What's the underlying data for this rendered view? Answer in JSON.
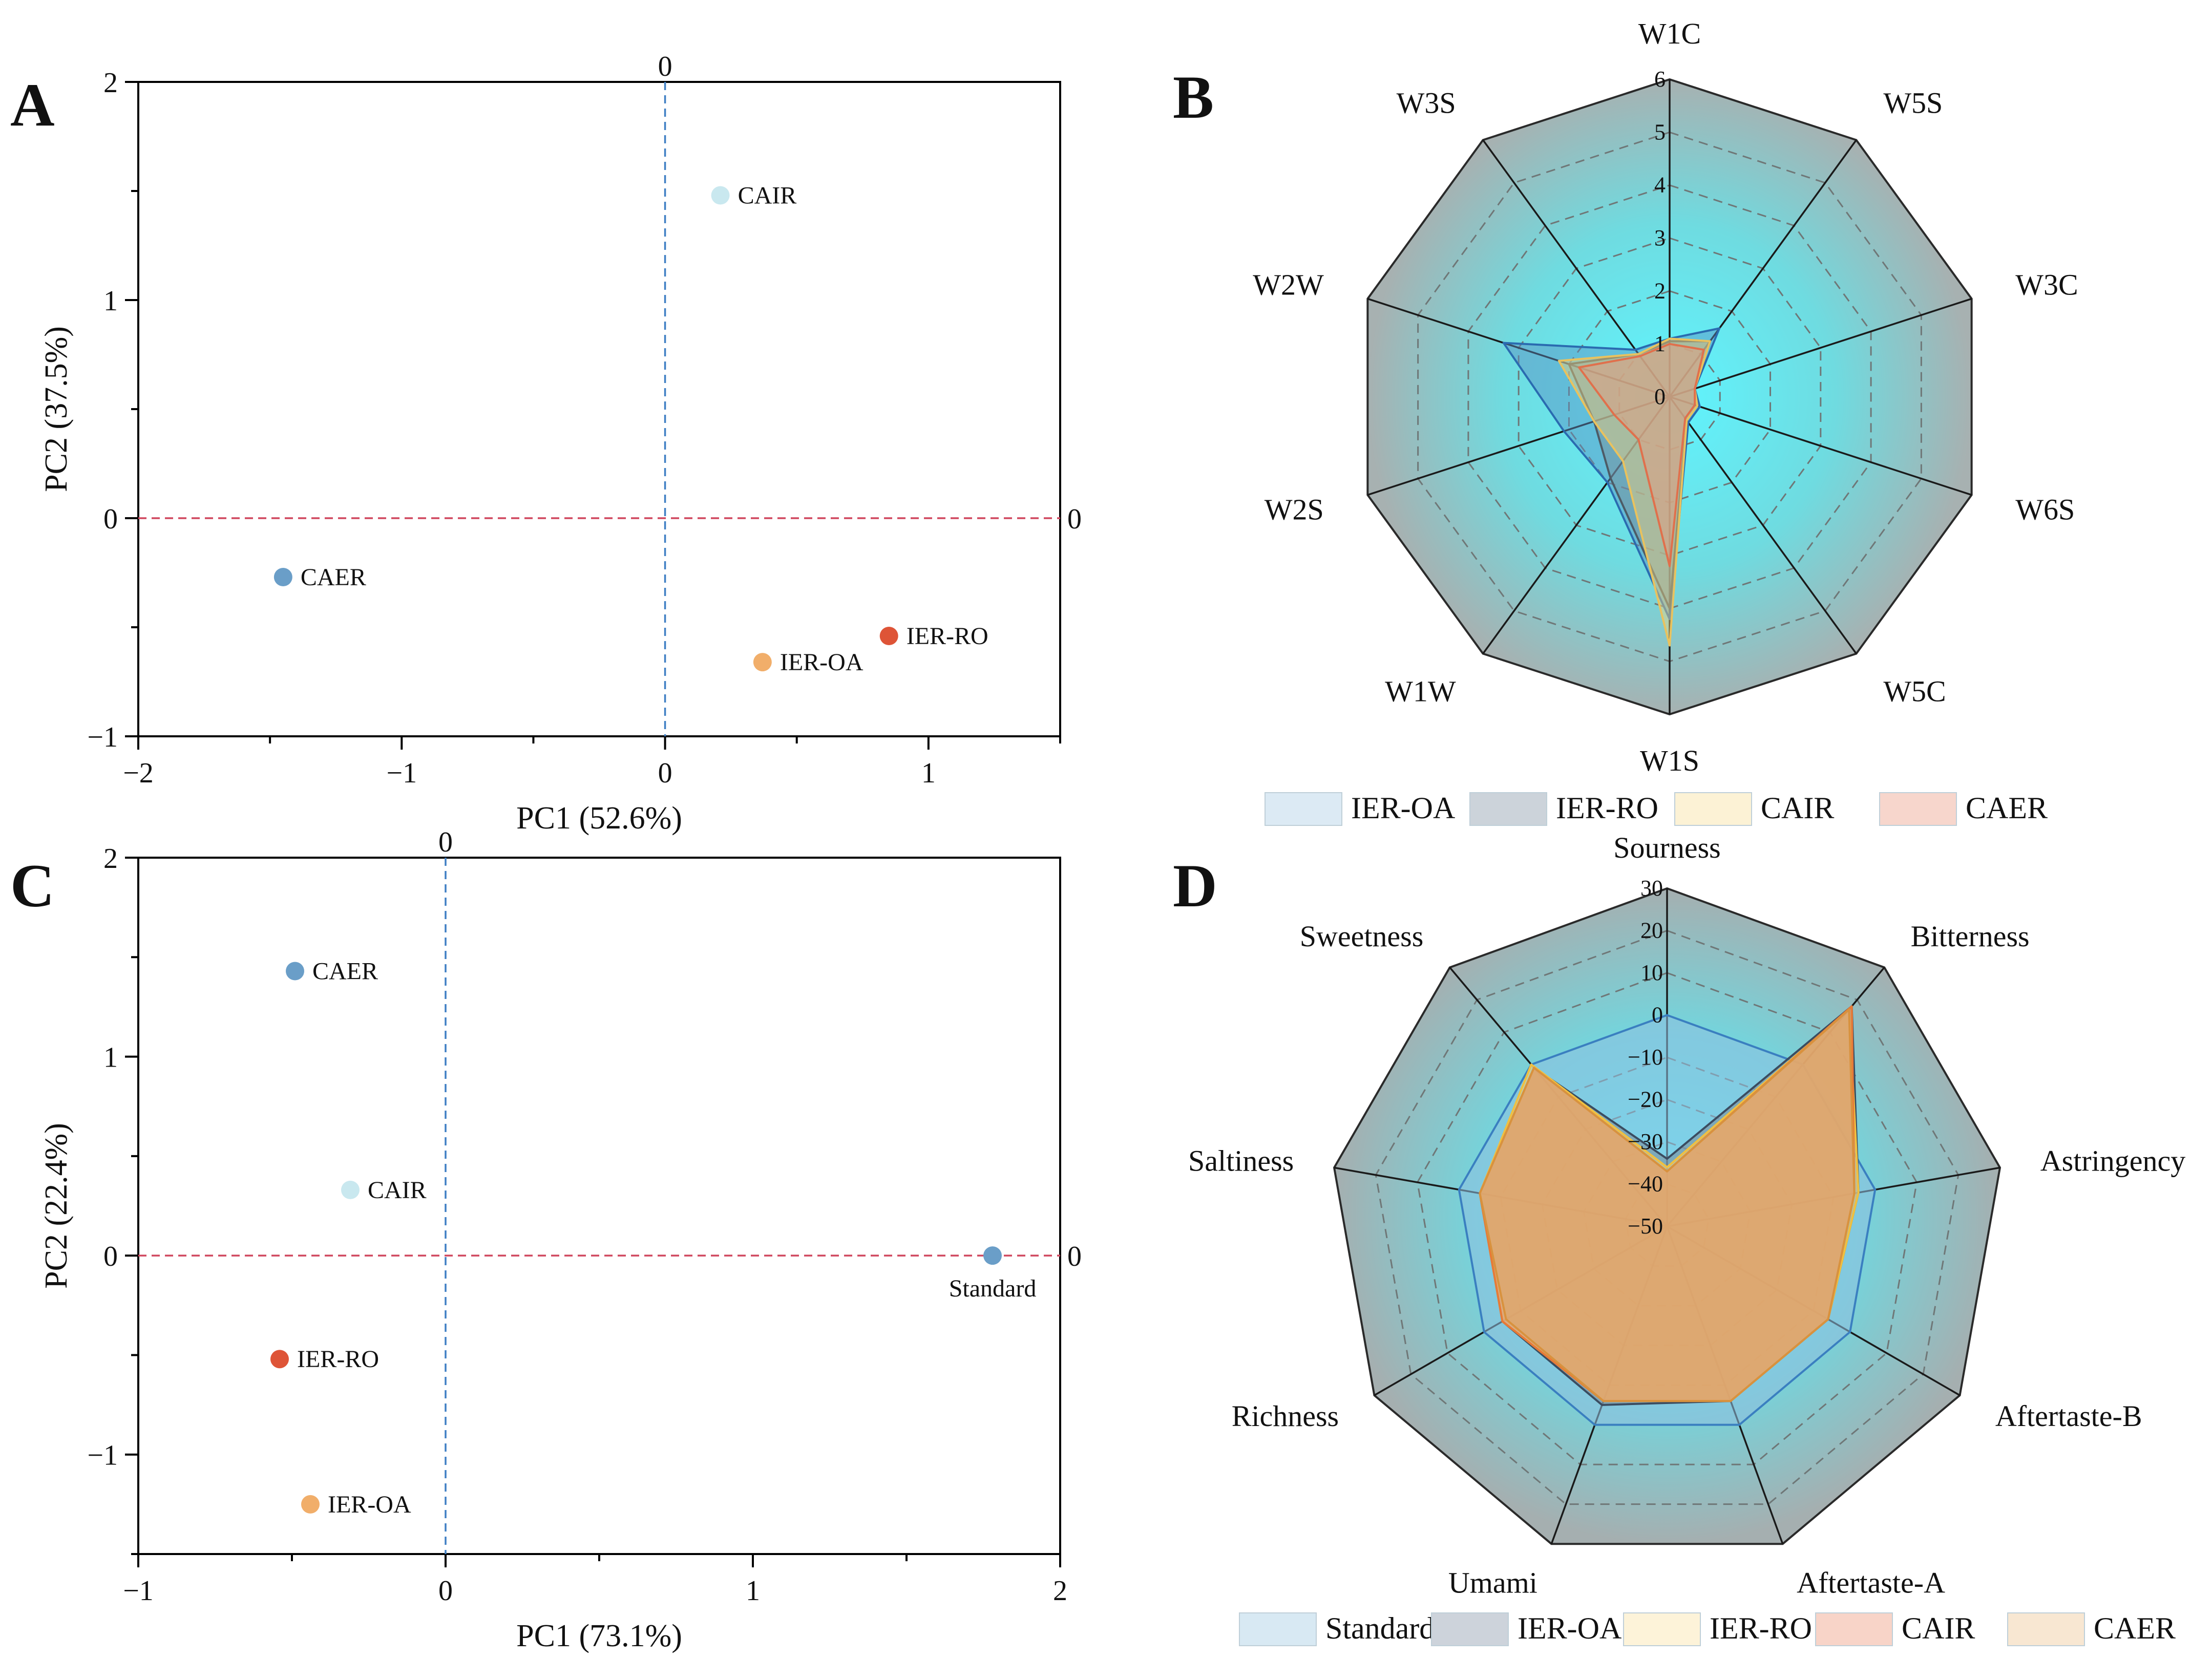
{
  "chart_data": [
    {
      "panel": "A",
      "type": "scatter",
      "xlabel": "PC1 (52.6%)",
      "ylabel": "PC2 (37.5%)",
      "xlim": [
        -2,
        1.5
      ],
      "ylim": [
        -1,
        2
      ],
      "xticks": [
        -2,
        -1,
        0,
        1
      ],
      "yticks": [
        -1,
        0,
        1,
        2
      ],
      "reference_lines": {
        "x0_label": "0",
        "y0_label": "0"
      },
      "points": [
        {
          "label": "CAIR",
          "x": 0.21,
          "y": 1.48,
          "color": "#c9e8ef"
        },
        {
          "label": "CAER",
          "x": -1.45,
          "y": -0.27,
          "color": "#6a9ec8"
        },
        {
          "label": "IER-RO",
          "x": 0.85,
          "y": -0.54,
          "color": "#de5437"
        },
        {
          "label": "IER-OA",
          "x": 0.37,
          "y": -0.66,
          "color": "#f1ae6a"
        }
      ]
    },
    {
      "panel": "B",
      "type": "radar",
      "axes": [
        "W1C",
        "W5S",
        "W3C",
        "W6S",
        "W5C",
        "W1S",
        "W1W",
        "W2S",
        "W2W",
        "W3S"
      ],
      "rmax": 6,
      "ticks": [
        0,
        1,
        2,
        3,
        4,
        5,
        6
      ],
      "series": [
        {
          "name": "IER-OA",
          "values": [
            1.1,
            1.6,
            0.5,
            0.6,
            0.6,
            4.2,
            2.0,
            2.1,
            3.3,
            1.1
          ],
          "stroke": "#2a6bb0",
          "fill": "#5a8cc0",
          "legend_fill": "#dceaf4"
        },
        {
          "name": "IER-RO",
          "values": [
            1.05,
            1.3,
            0.5,
            0.55,
            0.55,
            4.0,
            1.9,
            1.5,
            2.0,
            1.0
          ],
          "stroke": "#4d5b66",
          "fill": "#7d8b95",
          "legend_fill": "#ccd3da"
        },
        {
          "name": "CAIR",
          "values": [
            1.1,
            1.3,
            0.5,
            0.55,
            0.55,
            4.7,
            1.5,
            1.5,
            2.2,
            1.0
          ],
          "stroke": "#e9c25e",
          "fill": "#f2d57f",
          "legend_fill": "#fcf2d5"
        },
        {
          "name": "CAER",
          "values": [
            1.0,
            1.1,
            0.5,
            0.5,
            0.5,
            3.2,
            1.0,
            1.1,
            1.8,
            0.95
          ],
          "stroke": "#e0704c",
          "fill": "#ec9a7c",
          "legend_fill": "#f7d6cc"
        }
      ]
    },
    {
      "panel": "C",
      "type": "scatter",
      "xlabel": "PC1 (73.1%)",
      "ylabel": "PC2 (22.4%)",
      "xlim": [
        -1,
        2
      ],
      "ylim": [
        -1.5,
        2
      ],
      "xticks": [
        -1,
        0,
        1,
        2
      ],
      "yticks": [
        -1,
        0,
        1,
        2
      ],
      "reference_lines": {
        "x0_label": "0",
        "y0_label": "0"
      },
      "points": [
        {
          "label": "CAER",
          "x": -0.49,
          "y": 1.43,
          "color": "#6a9ec8"
        },
        {
          "label": "CAIR",
          "x": -0.31,
          "y": 0.33,
          "color": "#c9e8ef"
        },
        {
          "label": "Standard",
          "x": 1.78,
          "y": 0.0,
          "color": "#6a9ec8"
        },
        {
          "label": "IER-RO",
          "x": -0.54,
          "y": -0.52,
          "color": "#de5437"
        },
        {
          "label": "IER-OA",
          "x": -0.44,
          "y": -1.25,
          "color": "#f1ae6a"
        }
      ]
    },
    {
      "panel": "D",
      "type": "radar",
      "axes": [
        "Sourness",
        "Bitterness",
        "Astringency",
        "Aftertaste-B",
        "Aftertaste-A",
        "Umami",
        "Richness",
        "Saltiness",
        "Sweetness"
      ],
      "rmin": -50,
      "rmax": 30,
      "ticks": [
        -50,
        -40,
        -30,
        -20,
        -10,
        0,
        10,
        20,
        30
      ],
      "series": [
        {
          "name": "Standard",
          "values": [
            0,
            0,
            0,
            0,
            0,
            0,
            0,
            0,
            0
          ],
          "stroke": "#3a7fc0",
          "fill": "#8fbfe0",
          "legend_fill": "#d8e9f3"
        },
        {
          "name": "IER-OA",
          "values": [
            -34,
            18,
            -4,
            -6,
            -6,
            -5,
            -5,
            -5,
            -1
          ],
          "stroke": "#3b4c60",
          "fill": "#7c8896",
          "legend_fill": "#cdd3db"
        },
        {
          "name": "IER-RO",
          "values": [
            -36,
            17,
            -4,
            -6,
            -6,
            -6,
            -5,
            -5,
            0
          ],
          "stroke": "#f0c040",
          "fill": "#f5d37a",
          "legend_fill": "#fdf3d9"
        },
        {
          "name": "CAIR",
          "values": [
            -37,
            18,
            -5,
            -6,
            -6,
            -6,
            -5,
            -5,
            -1
          ],
          "stroke": "#e77a37",
          "fill": "#f29a6c",
          "legend_fill": "#f8d4c8"
        },
        {
          "name": "CAER",
          "values": [
            -37,
            17,
            -5,
            -6,
            -6,
            -6,
            -6,
            -5,
            -1
          ],
          "stroke": "#d8923e",
          "fill": "#dfa566",
          "legend_fill": "#f8e7d2"
        }
      ]
    }
  ]
}
